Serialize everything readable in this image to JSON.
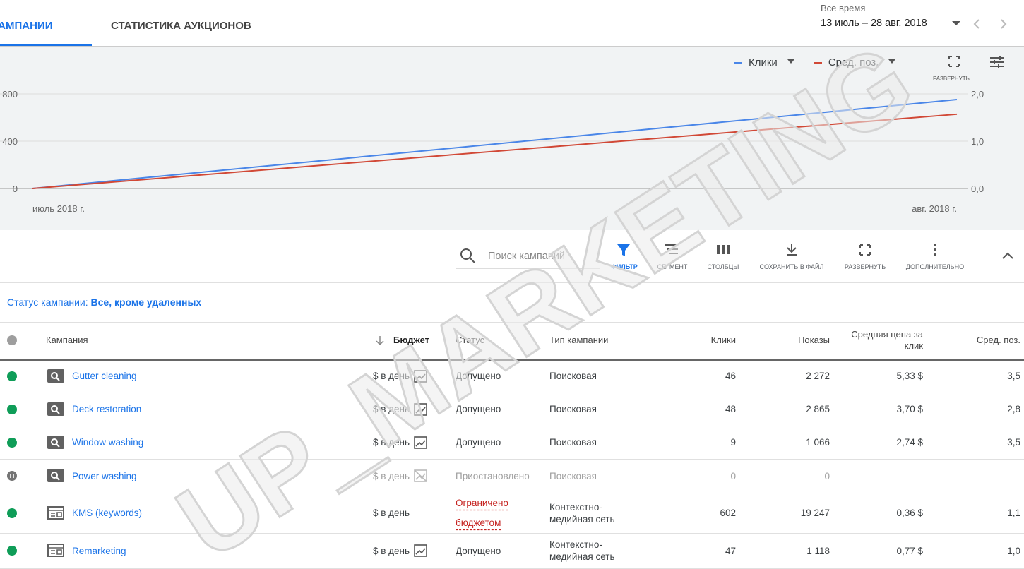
{
  "tabs": [
    "КАМПАНИИ",
    "СТАТИСТИКА АУКЦИОНОВ"
  ],
  "date": {
    "label": "Все время",
    "range": "13 июль – 28 авг. 2018"
  },
  "chart_data": {
    "type": "line",
    "categories": [
      "июль 2018 г.",
      "авг. 2018 г."
    ],
    "series": [
      {
        "name": "Клики",
        "color": "#4a86e8",
        "values": [
          0,
          752
        ]
      },
      {
        "name": "Сред. поз.",
        "color": "#d14836",
        "values": [
          0,
          1.57
        ],
        "axis": "y2"
      }
    ],
    "ylim": [
      0,
      800
    ],
    "yticks": [
      0,
      400,
      800
    ],
    "y2lim": [
      0,
      2
    ],
    "y2ticks": [
      {
        "value": 0,
        "label": "0,0"
      },
      {
        "value": 1,
        "label": "1,0"
      },
      {
        "value": 2,
        "label": "2,0"
      }
    ],
    "grid": true,
    "expand_label": "РАЗВЕРНУТЬ"
  },
  "toolbar": {
    "search": "Поиск кампаний",
    "buttons": [
      "ФИЛЬТР",
      "СЕГМЕНТ",
      "СТОЛБЦЫ",
      "СОХРАНИТЬ В ФАЙЛ",
      "РАЗВЕРНУТЬ",
      "ДОПОЛНИТЕЛЬНО"
    ]
  },
  "filter": {
    "label": "Статус кампании:",
    "value": "Все, кроме удаленных"
  },
  "table": {
    "headers": [
      "Кампания",
      "Бюджет",
      "Статус",
      "Тип кампании",
      "Клики",
      "Показы",
      "Средняя цена за клик",
      "Сред. поз."
    ],
    "rows": [
      {
        "state": "active",
        "icon": "search",
        "cells": [
          "Gutter cleaning",
          "$ в день",
          "Допущено",
          "Поисковая",
          "46",
          "2 272",
          "5,33 $",
          "3,5"
        ]
      },
      {
        "state": "active",
        "icon": "search",
        "cells": [
          "Deck restoration",
          "$ в день",
          "Допущено",
          "Поисковая",
          "48",
          "2 865",
          "3,70 $",
          "2,8"
        ]
      },
      {
        "state": "active",
        "icon": "search",
        "cells": [
          "Window washing",
          "$ в день",
          "Допущено",
          "Поисковая",
          "9",
          "1 066",
          "2,74 $",
          "3,5"
        ]
      },
      {
        "state": "paused",
        "icon": "search",
        "cells": [
          "Power washing",
          "$ в день",
          "Приостановлено",
          "Поисковая",
          "0",
          "0",
          "–",
          "–"
        ]
      },
      {
        "state": "limited",
        "icon": "display",
        "cells": [
          "KMS (keywords)",
          "$ в день",
          "Ограничено бюджетом",
          "Контекстно-медийная сеть",
          "602",
          "19 247",
          "0,36 $",
          "1,1"
        ]
      },
      {
        "state": "active",
        "icon": "display",
        "cells": [
          "Remarketing",
          "$ в день",
          "Допущено",
          "Контекстно-медийная сеть",
          "47",
          "1 118",
          "0,77 $",
          "1,0"
        ]
      }
    ]
  },
  "watermark": "UP_MARKETING"
}
